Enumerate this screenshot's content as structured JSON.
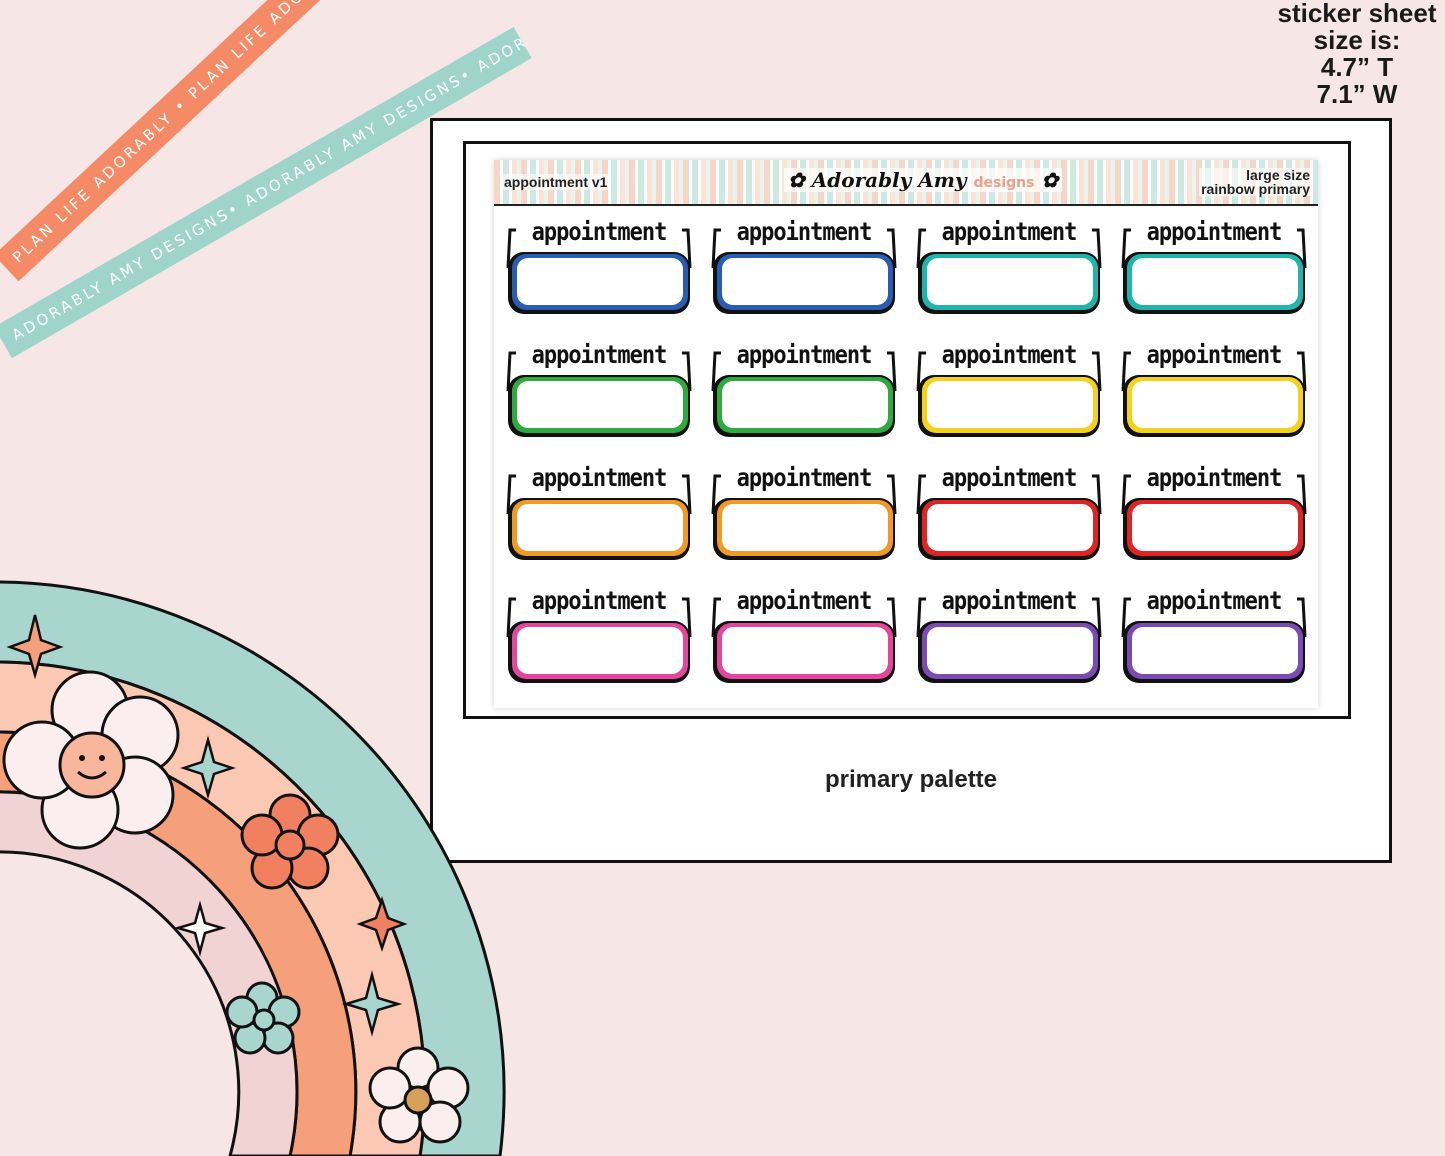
{
  "ribbons": {
    "orange_text": "PLAN LIFE ADORABLY • PLAN LIFE ADORABLY • PLAN LIFE ADORABLY",
    "teal_text": "ADORABLY AMY DESIGNS• ADORABLY AMY DESIGNS• ADORABLY AMY DESIGNS•",
    "orange_color": "#f58b66",
    "teal_color": "#9fd4cb"
  },
  "size_note": {
    "line1": "sticker sheet",
    "line2": "size is:",
    "line3": "4.7” T",
    "line4": "7.1” W"
  },
  "sheet": {
    "name": "appointment v1",
    "logo_main": "Adorably Amy",
    "logo_sub": "designs",
    "size_label": "large size",
    "palette_label": "rainbow primary"
  },
  "sticker_label": "appointment",
  "stickers": [
    {
      "color": "#2a5db0"
    },
    {
      "color": "#2a5db0"
    },
    {
      "color": "#20b5ac"
    },
    {
      "color": "#20b5ac"
    },
    {
      "color": "#2eaa3f"
    },
    {
      "color": "#2eaa3f"
    },
    {
      "color": "#f4d11a"
    },
    {
      "color": "#f4d11a"
    },
    {
      "color": "#ef9a24"
    },
    {
      "color": "#ef9a24"
    },
    {
      "color": "#e02424"
    },
    {
      "color": "#e02424"
    },
    {
      "color": "#e4469b"
    },
    {
      "color": "#e4469b"
    },
    {
      "color": "#7a4bb2"
    },
    {
      "color": "#7a4bb2"
    }
  ],
  "caption": "primary palette",
  "rainbow_colors": [
    "#a8d6cf",
    "#fbc9b3",
    "#f5a07a",
    "#f1d3d3"
  ]
}
